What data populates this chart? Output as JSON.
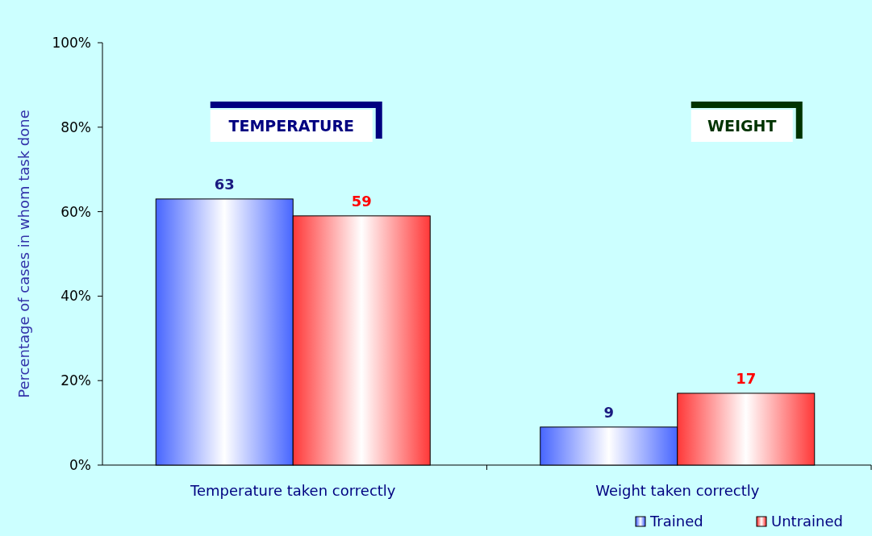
{
  "chart_data": {
    "type": "bar",
    "ylabel": "Percentage of cases in whom task done",
    "categories": [
      "Temperature taken correctly",
      "Weight taken correctly"
    ],
    "series": [
      {
        "name": "Trained",
        "color": "#3355ff",
        "values": [
          63,
          9
        ]
      },
      {
        "name": "Untrained",
        "color": "#ff2222",
        "values": [
          59,
          17
        ]
      }
    ],
    "ylim": [
      0,
      100
    ],
    "yticks": [
      {
        "value": 0,
        "label": "0%"
      },
      {
        "value": 20,
        "label": "20%"
      },
      {
        "value": 40,
        "label": "40%"
      },
      {
        "value": 60,
        "label": "60%"
      },
      {
        "value": 80,
        "label": "80%"
      },
      {
        "value": 100,
        "label": "100%"
      }
    ],
    "data_labels": true,
    "legend": "bottom right",
    "annotations": [
      "TEMPERATURE",
      "WEIGHT"
    ]
  }
}
